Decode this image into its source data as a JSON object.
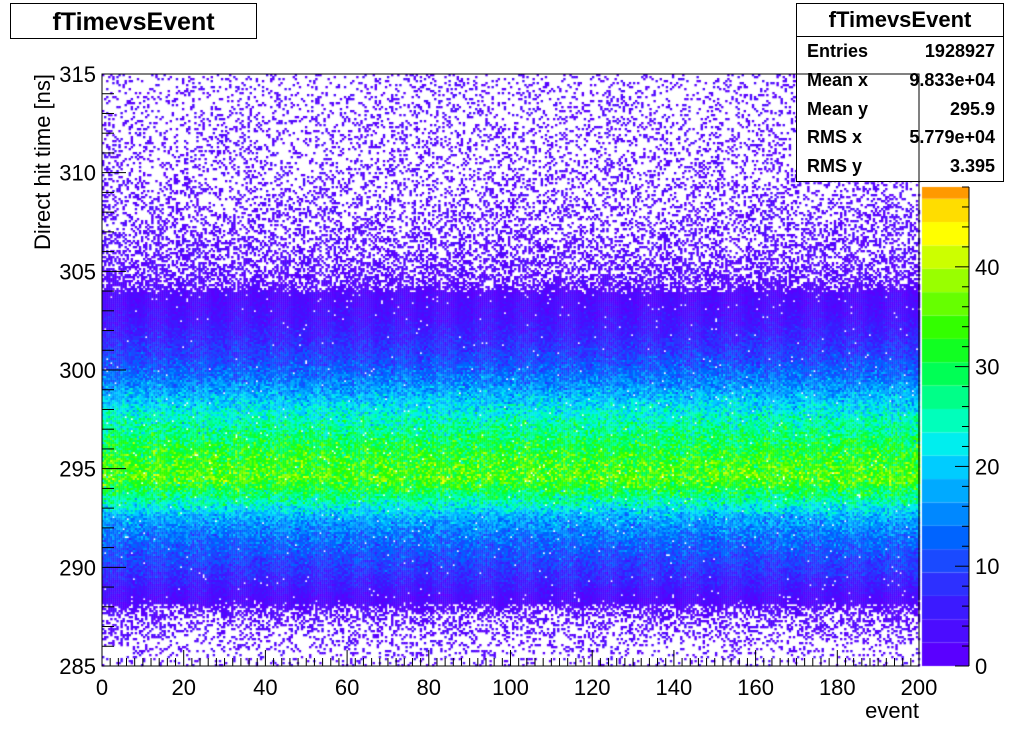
{
  "title": "fTimevsEvent",
  "stats": {
    "name": "fTimevsEvent",
    "rows": [
      {
        "label": "Entries",
        "value": "1928927"
      },
      {
        "label": "Mean x",
        "value": "9.833e+04"
      },
      {
        "label": "Mean y",
        "value": "295.9"
      },
      {
        "label": "RMS x",
        "value": "5.779e+04"
      },
      {
        "label": "RMS y",
        "value": "3.395"
      }
    ]
  },
  "chart_data": {
    "type": "heatmap",
    "title": "fTimevsEvent",
    "xlabel": "event",
    "ylabel": "Direct hit time [ns]",
    "xlim": [
      0,
      200
    ],
    "ylim": [
      285,
      315
    ],
    "xticks": [
      0,
      20,
      40,
      60,
      80,
      100,
      120,
      140,
      160,
      180,
      200
    ],
    "yticks": [
      285,
      290,
      295,
      300,
      305,
      310,
      315
    ],
    "z_ticks": [
      0,
      10,
      20,
      30,
      40
    ],
    "z_range": [
      0,
      48
    ],
    "grid": false,
    "colors": [
      "#5a00ff",
      "#4b0cff",
      "#3c1aff",
      "#2d30ff",
      "#1a4aff",
      "#0064ff",
      "#0088ff",
      "#00aaff",
      "#00ccff",
      "#00eeee",
      "#00ffbb",
      "#00ff88",
      "#00ff55",
      "#11ff22",
      "#33ff00",
      "#66ff00",
      "#99ff00",
      "#ccff00",
      "#ffff00",
      "#ffdd00",
      "#ff9900"
    ],
    "profile": [
      {
        "y": 285.5,
        "level": 0.4
      },
      {
        "y": 286.5,
        "level": 0.8
      },
      {
        "y": 287.5,
        "level": 1.5
      },
      {
        "y": 288.5,
        "level": 3
      },
      {
        "y": 289.5,
        "level": 7
      },
      {
        "y": 290.5,
        "level": 10
      },
      {
        "y": 291.5,
        "level": 13
      },
      {
        "y": 292.5,
        "level": 17
      },
      {
        "y": 293.5,
        "level": 26
      },
      {
        "y": 294.5,
        "level": 34
      },
      {
        "y": 295.5,
        "level": 32
      },
      {
        "y": 296.5,
        "level": 28
      },
      {
        "y": 297.5,
        "level": 24
      },
      {
        "y": 298.5,
        "level": 19
      },
      {
        "y": 299.5,
        "level": 14
      },
      {
        "y": 300.5,
        "level": 10
      },
      {
        "y": 301.5,
        "level": 7
      },
      {
        "y": 302.5,
        "level": 4.5
      },
      {
        "y": 303.5,
        "level": 3
      },
      {
        "y": 304.5,
        "level": 2
      },
      {
        "y": 305.5,
        "level": 1.5
      },
      {
        "y": 306.5,
        "level": 1.2
      },
      {
        "y": 307.5,
        "level": 1
      },
      {
        "y": 308.5,
        "level": 0.9
      },
      {
        "y": 309.5,
        "level": 0.8
      },
      {
        "y": 310.5,
        "level": 0.7
      },
      {
        "y": 311.5,
        "level": 0.65
      },
      {
        "y": 312.5,
        "level": 0.6
      },
      {
        "y": 313.5,
        "level": 0.55
      },
      {
        "y": 314.5,
        "level": 0.5
      }
    ]
  }
}
